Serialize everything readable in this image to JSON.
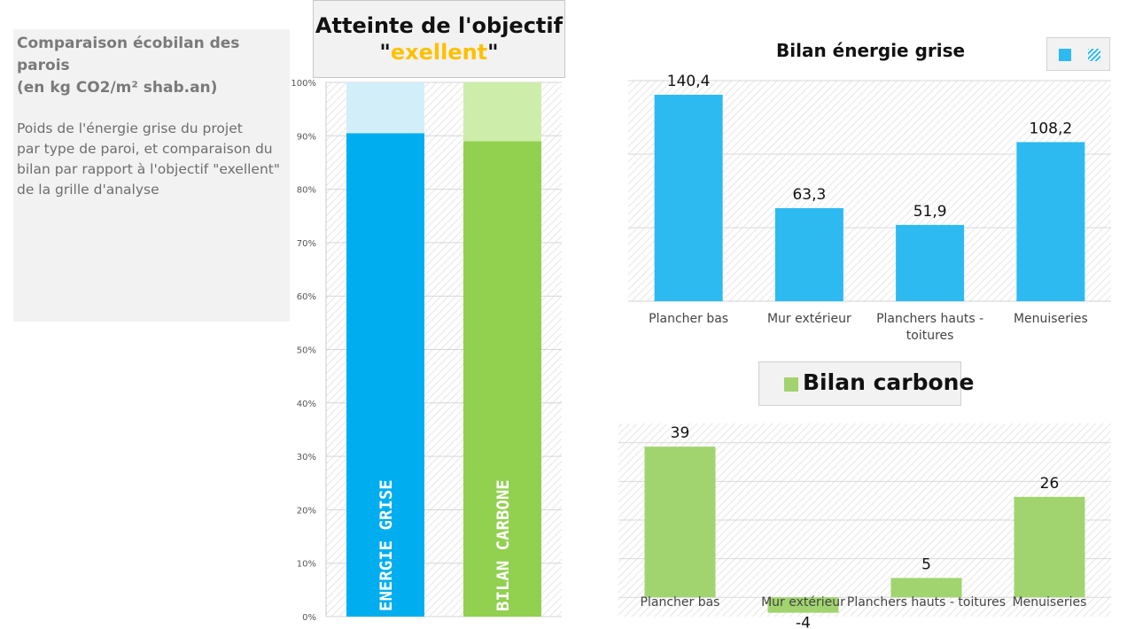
{
  "info": {
    "title": "Comparaison  écobilan  des parois\n (en kg CO2/m² shab.an)",
    "description": "Poids de l'énergie grise du projet\npar type de paroi, et comparaison du\nbilan par rapport à l'objectif  \"exellent\"\nde la grille d'analyse"
  },
  "goal_header": {
    "title": "Atteinte de l'objectif",
    "quote_open": "\"",
    "accent_word": "exellent",
    "quote_close": "\""
  },
  "colors": {
    "energy": "#2dbaf0",
    "energy_stacked": "#00aeef",
    "energy_light": "#d2eff9",
    "carbon": "#a1d46f",
    "carbon_stacked": "#92d050",
    "carbon_light": "#cdedaa",
    "goal_accent": "#ffc000"
  },
  "legend_energy": {
    "icons": [
      "solid-square-icon",
      "hatched-square-icon"
    ]
  },
  "legend_carbon": {
    "label": "Bilan carbone"
  },
  "chart_data": [
    {
      "type": "bar",
      "stacked": true,
      "title": "",
      "categories": [
        "ENERGIE GRISE",
        "BILAN CARBONE"
      ],
      "series": [
        {
          "values": [
            90.5,
            89
          ]
        },
        {
          "values": [
            9.5,
            11
          ]
        }
      ],
      "ylim": [
        0,
        100
      ],
      "ytick_labels": [
        "0%",
        "10%",
        "20%",
        "30%",
        "40%",
        "50%",
        "60%",
        "70%",
        "80%",
        "90%",
        "100%"
      ],
      "grid": true
    },
    {
      "type": "bar",
      "title": "Bilan énergie grise",
      "categories": [
        "Plancher bas",
        "Mur extérieur",
        "Planchers hauts - toitures",
        "Menuiseries"
      ],
      "category_lines": [
        [
          "Plancher bas"
        ],
        [
          "Mur extérieur"
        ],
        [
          "Planchers hauts -",
          "toitures"
        ],
        [
          "Menuiseries"
        ]
      ],
      "values": [
        140.4,
        63.3,
        51.9,
        108.2
      ],
      "value_labels": [
        "140,4",
        "63,3",
        "51,9",
        "108,2"
      ],
      "ylim": [
        0,
        150
      ],
      "grid": true,
      "legend": "top-right"
    },
    {
      "type": "bar",
      "title": "",
      "categories": [
        "Plancher bas",
        "Mur extérieur",
        "Planchers hauts - toitures",
        "Menuiseries"
      ],
      "values": [
        39,
        -4,
        5,
        26
      ],
      "value_labels": [
        "39",
        "-4",
        "5",
        "26"
      ],
      "ylim": [
        -5,
        45
      ],
      "grid": true,
      "legend": "top"
    }
  ]
}
